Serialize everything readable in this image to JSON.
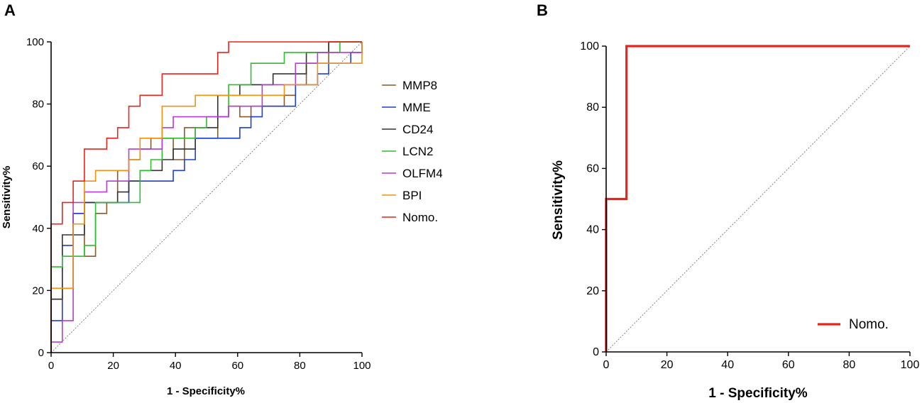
{
  "chart_data": [
    {
      "panel": "A",
      "type": "line",
      "subtype": "roc-step",
      "xlabel": "1 - Specificity%",
      "ylabel": "Sensitivity%",
      "xlim": [
        0,
        100
      ],
      "ylim": [
        0,
        100
      ],
      "xticks": [
        0,
        20,
        40,
        60,
        80,
        100
      ],
      "yticks": [
        0,
        20,
        40,
        60,
        80,
        100
      ],
      "reference_line": true,
      "legend_position": "right",
      "series": [
        {
          "name": "MMP8",
          "color": "#8B5A2B",
          "x": [
            0,
            0,
            3.6,
            3.6,
            7.1,
            7.1,
            10.7,
            10.7,
            14.3,
            14.3,
            17.9,
            17.9,
            21.4,
            21.4,
            25,
            25,
            28.6,
            28.6,
            32.1,
            32.1,
            39.3,
            39.3,
            42.9,
            42.9,
            46.4,
            46.4,
            53.6,
            53.6,
            57.1,
            57.1,
            60.7,
            60.7,
            64.3,
            64.3,
            75,
            75,
            78.6,
            78.6,
            82.1,
            82.1,
            89.3,
            89.3,
            100
          ],
          "y": [
            0,
            17.2,
            17.2,
            20.7,
            20.7,
            44.8,
            44.8,
            31,
            31,
            44.8,
            44.8,
            48.3,
            48.3,
            58.6,
            58.6,
            62.1,
            62.1,
            65.5,
            65.5,
            69,
            69,
            62.1,
            62.1,
            72.4,
            72.4,
            69,
            69,
            75.9,
            75.9,
            79.3,
            79.3,
            75.9,
            75.9,
            79.3,
            79.3,
            82.8,
            82.8,
            86.2,
            86.2,
            93.1,
            93.1,
            100,
            100
          ]
        },
        {
          "name": "MME",
          "color": "#1F3FD1",
          "x": [
            0,
            0,
            3.6,
            3.6,
            7.1,
            7.1,
            10.7,
            10.7,
            25,
            25,
            28.6,
            28.6,
            39.3,
            39.3,
            42.9,
            42.9,
            46.4,
            46.4,
            60.7,
            60.7,
            64.3,
            64.3,
            67.9,
            67.9,
            78.6,
            78.6,
            85.7,
            85.7,
            89.3,
            89.3,
            96.4,
            96.4,
            100,
            100
          ],
          "y": [
            0,
            10.3,
            10.3,
            34.5,
            34.5,
            44.8,
            44.8,
            48.3,
            48.3,
            55.2,
            55.2,
            55.2,
            55.2,
            58.6,
            58.6,
            62.1,
            62.1,
            69,
            69,
            72.4,
            72.4,
            75.9,
            75.9,
            79.3,
            79.3,
            86.2,
            86.2,
            89.7,
            89.7,
            93.1,
            93.1,
            96.6,
            96.6,
            100
          ]
        },
        {
          "name": "CD24",
          "color": "#333333",
          "x": [
            0,
            0,
            3.6,
            3.6,
            10.7,
            10.7,
            14.3,
            14.3,
            21.4,
            21.4,
            25,
            25,
            28.6,
            28.6,
            35.7,
            35.7,
            39.3,
            39.3,
            46.4,
            46.4,
            53.6,
            53.6,
            60.7,
            60.7,
            64.3,
            64.3,
            71.4,
            71.4,
            75,
            75,
            82.1,
            82.1,
            89.3,
            89.3,
            96.4,
            96.4,
            100,
            100
          ],
          "y": [
            0,
            17.2,
            17.2,
            37.9,
            37.9,
            48.3,
            48.3,
            48.3,
            48.3,
            51.7,
            51.7,
            55.2,
            55.2,
            58.6,
            58.6,
            62.1,
            62.1,
            65.5,
            65.5,
            72.4,
            72.4,
            82.8,
            82.8,
            86.2,
            86.2,
            86.2,
            86.2,
            89.7,
            89.7,
            89.7,
            89.7,
            96.6,
            96.6,
            100,
            100,
            100,
            100,
            100
          ]
        },
        {
          "name": "LCN2",
          "color": "#2DBE2D",
          "x": [
            0,
            0,
            3.6,
            3.6,
            10.7,
            10.7,
            14.3,
            14.3,
            17.9,
            17.9,
            28.6,
            28.6,
            32.1,
            32.1,
            35.7,
            35.7,
            46.4,
            46.4,
            50,
            50,
            57.1,
            57.1,
            64.3,
            64.3,
            71.4,
            71.4,
            75,
            75,
            85.7,
            85.7,
            92.9,
            92.9,
            100,
            100
          ],
          "y": [
            0,
            27.6,
            27.6,
            31,
            31,
            34.5,
            34.5,
            48.3,
            48.3,
            48.3,
            48.3,
            58.6,
            58.6,
            62.1,
            62.1,
            69,
            69,
            72.4,
            72.4,
            75.9,
            75.9,
            86.2,
            86.2,
            93.1,
            93.1,
            93.1,
            93.1,
            96.6,
            96.6,
            96.6,
            96.6,
            100,
            100,
            100
          ]
        },
        {
          "name": "OLFM4",
          "color": "#B43CD6",
          "x": [
            0,
            0,
            3.6,
            3.6,
            7.1,
            7.1,
            10.7,
            10.7,
            17.9,
            17.9,
            25,
            25,
            35.7,
            35.7,
            39.3,
            39.3,
            53.6,
            53.6,
            57.1,
            57.1,
            67.9,
            67.9,
            78.6,
            78.6,
            85.7,
            85.7,
            100,
            100
          ],
          "y": [
            0,
            3.4,
            3.4,
            10.3,
            10.3,
            48.3,
            48.3,
            51.7,
            51.7,
            55.2,
            55.2,
            65.5,
            65.5,
            72.4,
            72.4,
            75.9,
            75.9,
            75.9,
            75.9,
            79.3,
            79.3,
            86.2,
            86.2,
            93.1,
            93.1,
            96.6,
            96.6,
            100
          ]
        },
        {
          "name": "BPI",
          "color": "#F2900F",
          "x": [
            0,
            0,
            3.6,
            3.6,
            7.1,
            7.1,
            10.7,
            10.7,
            14.3,
            14.3,
            25,
            25,
            28.6,
            28.6,
            35.7,
            35.7,
            46.4,
            46.4,
            53.6,
            53.6,
            64.3,
            64.3,
            75,
            75,
            78.6,
            78.6,
            85.7,
            85.7,
            92.9,
            92.9,
            100,
            100
          ],
          "y": [
            0,
            20.7,
            20.7,
            20.7,
            20.7,
            41.4,
            41.4,
            55.2,
            55.2,
            58.6,
            58.6,
            62.1,
            62.1,
            69,
            69,
            79.3,
            79.3,
            82.8,
            82.8,
            82.8,
            82.8,
            82.8,
            82.8,
            86.2,
            86.2,
            86.2,
            86.2,
            93.1,
            93.1,
            93.1,
            93.1,
            100
          ]
        },
        {
          "name": "Nomo.",
          "color": "#E8241C",
          "x": [
            0,
            0,
            3.6,
            3.6,
            7.1,
            7.1,
            10.7,
            10.7,
            17.9,
            17.9,
            21.4,
            21.4,
            25,
            25,
            28.6,
            28.6,
            35.7,
            35.7,
            53.6,
            53.6,
            57.1,
            57.1,
            100,
            100
          ],
          "y": [
            0,
            41.4,
            41.4,
            48.3,
            48.3,
            55.2,
            55.2,
            65.5,
            65.5,
            69,
            69,
            72.4,
            72.4,
            79.3,
            79.3,
            82.8,
            82.8,
            89.7,
            89.7,
            96.6,
            96.6,
            100,
            100,
            100
          ]
        }
      ]
    },
    {
      "panel": "B",
      "type": "line",
      "subtype": "roc-step",
      "xlabel": "1 - Specificity%",
      "ylabel": "Sensitivity%",
      "xlim": [
        0,
        100
      ],
      "ylim": [
        0,
        100
      ],
      "xticks": [
        0,
        20,
        40,
        60,
        80,
        100
      ],
      "yticks": [
        0,
        20,
        40,
        60,
        80,
        100
      ],
      "reference_line": true,
      "legend_position": "bottom-right",
      "series": [
        {
          "name": "Nomo.",
          "color": "#E8241C",
          "x": [
            0,
            0,
            6.7,
            6.7,
            100
          ],
          "y": [
            0,
            50,
            50,
            100,
            100
          ]
        }
      ]
    }
  ]
}
